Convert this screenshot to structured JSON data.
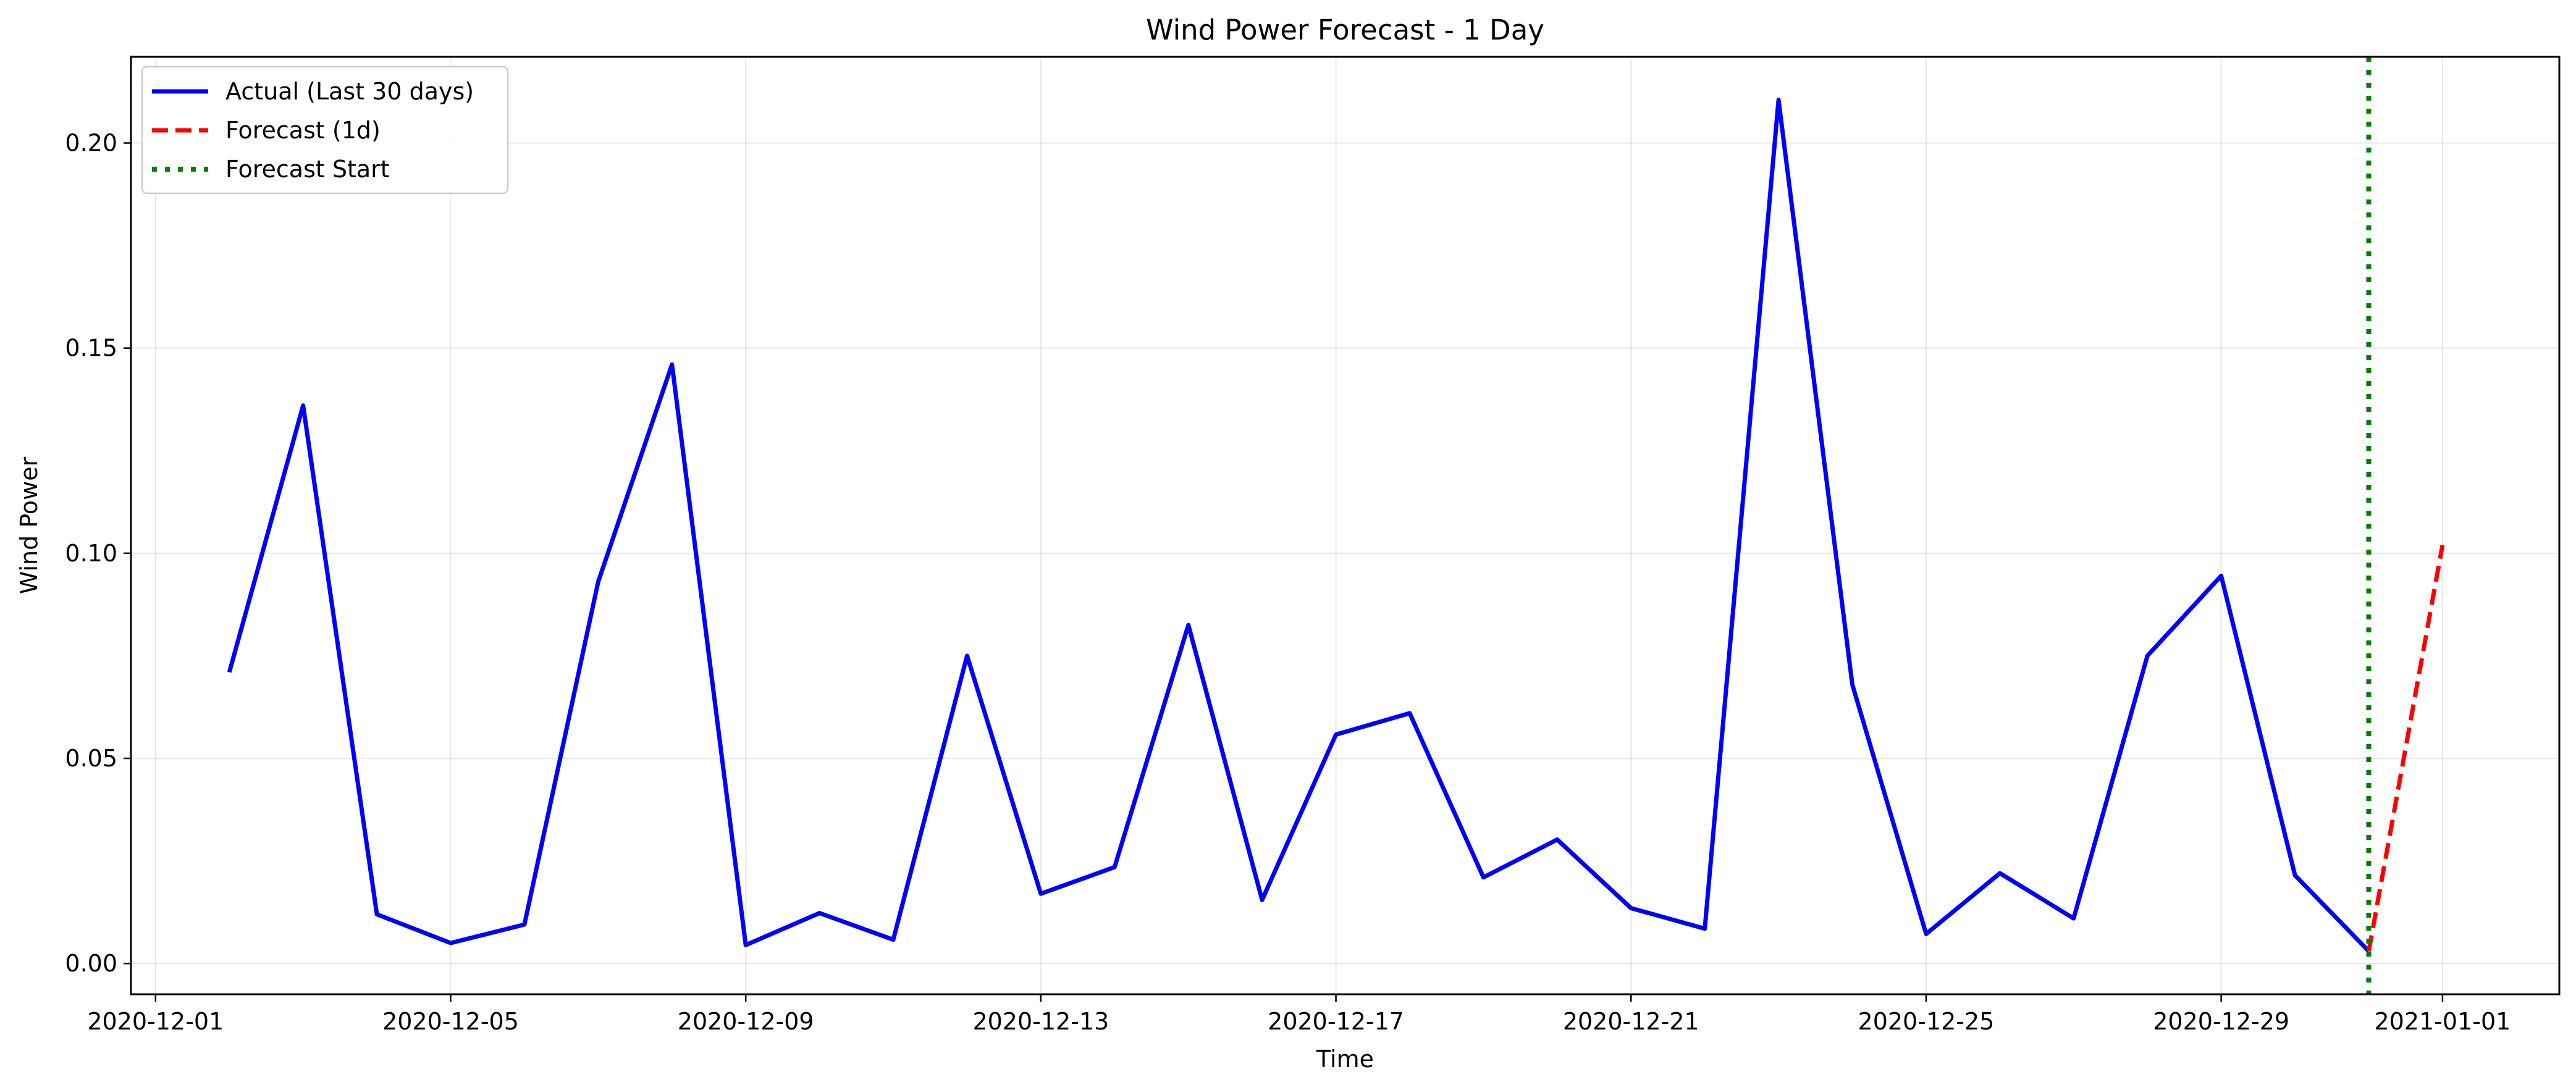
{
  "chart_data": {
    "type": "line",
    "title": "Wind Power Forecast - 1 Day",
    "xlabel": "Time",
    "ylabel": "Wind Power",
    "xlim": [
      "2020-11-30T16:00",
      "2021-01-02T14:00"
    ],
    "ylim": [
      -0.0075,
      0.221
    ],
    "x_ticks": [
      "2020-12-01",
      "2020-12-05",
      "2020-12-09",
      "2020-12-13",
      "2020-12-17",
      "2020-12-21",
      "2020-12-25",
      "2020-12-29",
      "2021-01-01"
    ],
    "y_ticks": [
      0.0,
      0.05,
      0.1,
      0.15,
      0.2
    ],
    "y_tick_labels": [
      "0.00",
      "0.05",
      "0.10",
      "0.15",
      "0.20"
    ],
    "grid": true,
    "legend": "top-left",
    "series": [
      {
        "name": "Actual (Last 30 days)",
        "color": "#0000ff",
        "style": "solid",
        "x": [
          "2020-12-02",
          "2020-12-03",
          "2020-12-04",
          "2020-12-05",
          "2020-12-06",
          "2020-12-07",
          "2020-12-08",
          "2020-12-09",
          "2020-12-10",
          "2020-12-11",
          "2020-12-12",
          "2020-12-13",
          "2020-12-14",
          "2020-12-15",
          "2020-12-16",
          "2020-12-17",
          "2020-12-18",
          "2020-12-19",
          "2020-12-20",
          "2020-12-21",
          "2020-12-22",
          "2020-12-23",
          "2020-12-24",
          "2020-12-25",
          "2020-12-26",
          "2020-12-27",
          "2020-12-28",
          "2020-12-29",
          "2020-12-30",
          "2020-12-31"
        ],
        "values": [
          0.071,
          0.136,
          0.012,
          0.005,
          0.0095,
          0.093,
          0.146,
          0.0045,
          0.0123,
          0.0058,
          0.075,
          0.017,
          0.0235,
          0.0825,
          0.0155,
          0.0558,
          0.061,
          0.021,
          0.0302,
          0.0135,
          0.0085,
          0.2105,
          0.068,
          0.0072,
          0.022,
          0.011,
          0.075,
          0.0945,
          0.0215,
          0.003
        ]
      },
      {
        "name": "Forecast (1d)",
        "color": "#ff0000",
        "style": "dashed",
        "x": [
          "2020-12-31",
          "2021-01-01"
        ],
        "values": [
          0.003,
          0.102
        ]
      },
      {
        "name": "Forecast Start",
        "color": "#008000",
        "style": "dotted",
        "vline_x": "2020-12-31"
      }
    ]
  }
}
